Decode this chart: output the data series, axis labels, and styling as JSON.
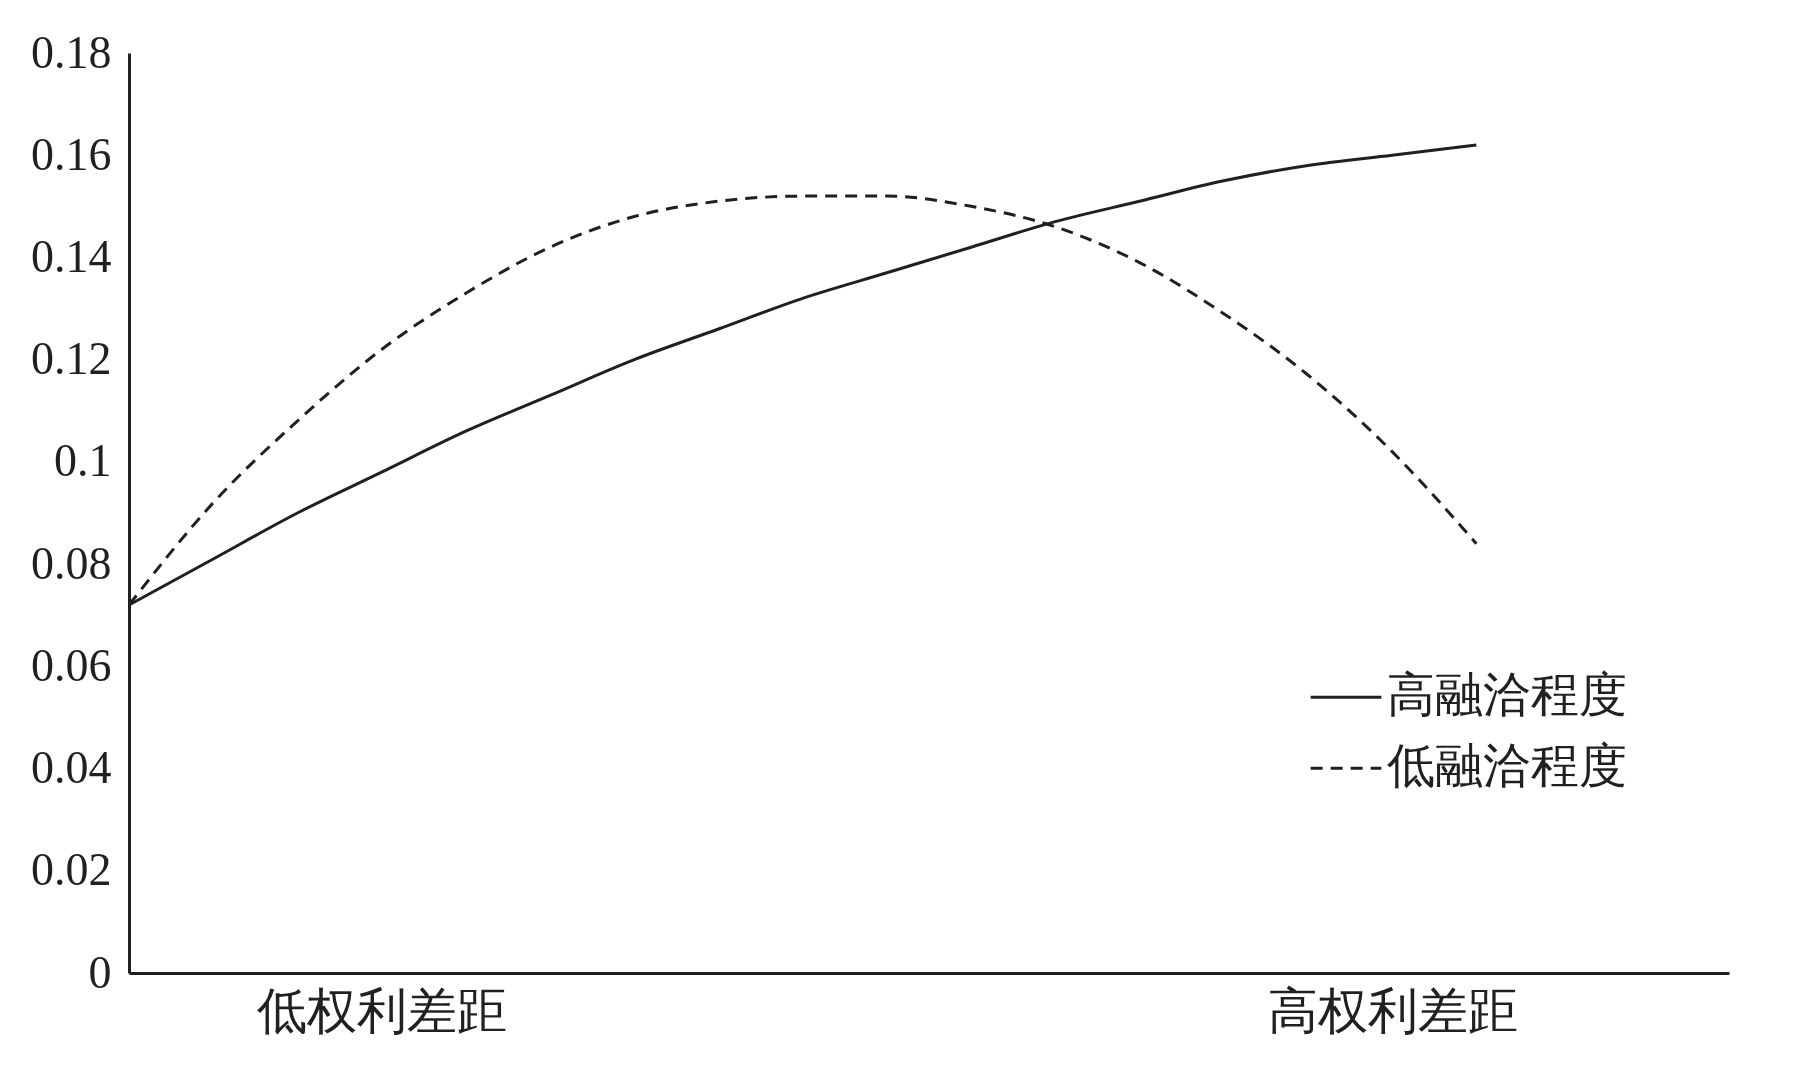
{
  "chart_data": {
    "type": "line",
    "ylim": [
      0,
      0.18
    ],
    "yticks": [
      0,
      0.02,
      0.04,
      0.06,
      0.08,
      0.1,
      0.12,
      0.14,
      0.16,
      0.18
    ],
    "categories": [
      null,
      null,
      null,
      "低权利差距",
      null,
      null,
      null,
      null,
      null,
      null,
      null,
      null,
      null,
      null,
      null,
      "高权利差距",
      null,
      null,
      null,
      null
    ],
    "series": [
      {
        "name": "高融洽程度",
        "color": "#231f20",
        "line_style": "solid",
        "values": [
          0.072,
          0.081,
          0.09,
          0.098,
          0.106,
          0.113,
          0.12,
          0.126,
          0.132,
          0.137,
          0.142,
          0.147,
          0.151,
          0.155,
          0.158,
          0.16,
          0.162,
          null,
          null,
          null
        ]
      },
      {
        "name": "低融洽程度",
        "color": "#231f20",
        "line_style": "dashed",
        "values": [
          0.072,
          0.092,
          0.108,
          0.122,
          0.133,
          0.142,
          0.148,
          0.151,
          0.152,
          0.152,
          0.15,
          0.146,
          0.139,
          0.129,
          0.117,
          0.102,
          0.084,
          null,
          null,
          null
        ]
      }
    ],
    "grid": false,
    "legend": "bottom right",
    "marker": "none"
  }
}
